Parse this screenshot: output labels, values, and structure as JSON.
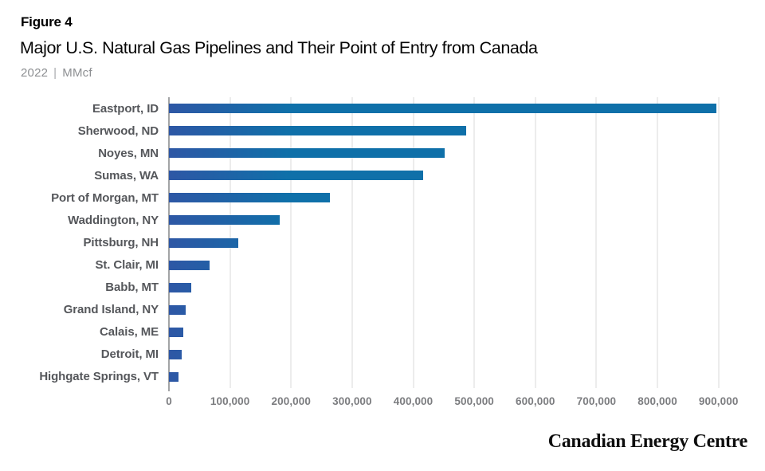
{
  "figure_label": "Figure 4",
  "title": "Major U.S. Natural Gas Pipelines and Their Point of Entry from Canada",
  "subtitle": {
    "year": "2022",
    "separator": "|",
    "unit": "MMcf"
  },
  "footer": {
    "brand": "Canadian Energy Centre"
  },
  "colors": {
    "bar_gradient_start": "#2e57a5",
    "bar_gradient_end": "#0f70a9",
    "axis_line": "#a2a4a6",
    "gridline": "#d8d9da",
    "category_label": "#55575b",
    "tick_label": "#7c7d80",
    "subtitle_text": "#8d8f92"
  },
  "chart_data": {
    "type": "bar",
    "orientation": "horizontal",
    "title": "Major U.S. Natural Gas Pipelines and Their Point of Entry from Canada",
    "subtitle": "2022 | MMcf",
    "unit": "MMcf",
    "xlabel": "",
    "ylabel": "",
    "grid": "vertical-only",
    "legend": "none",
    "xlim": [
      0,
      950000
    ],
    "xticks": [
      0,
      100000,
      200000,
      300000,
      400000,
      500000,
      600000,
      700000,
      800000,
      900000
    ],
    "xtick_labels": [
      "0",
      "100,000",
      "200,000",
      "300,000",
      "400,000",
      "500,000",
      "600,000",
      "700,000",
      "800,000",
      "900,000"
    ],
    "categories": [
      "Eastport, ID",
      "Sherwood, ND",
      "Noyes, MN",
      "Sumas, WA",
      "Port of Morgan, MT",
      "Waddington, NY",
      "Pittsburg, NH",
      "St. Clair, MI",
      "Babb, MT",
      "Grand Island, NY",
      "Calais, ME",
      "Detroit, MI",
      "Highgate Springs, VT"
    ],
    "values": [
      897000,
      487000,
      452000,
      416000,
      263000,
      182000,
      114000,
      67000,
      37000,
      28000,
      23000,
      21000,
      16000
    ]
  }
}
